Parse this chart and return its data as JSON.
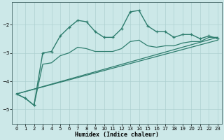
{
  "xlabel": "Humidex (Indice chaleur)",
  "ylabel": "",
  "bg_color": "#cce8e8",
  "line_color": "#2e7d6e",
  "xlim": [
    -0.5,
    23.5
  ],
  "ylim": [
    -5.5,
    -1.2
  ],
  "yticks": [
    -5,
    -4,
    -3,
    -2
  ],
  "xticks": [
    0,
    1,
    2,
    3,
    4,
    5,
    6,
    7,
    8,
    9,
    10,
    11,
    12,
    13,
    14,
    15,
    16,
    17,
    18,
    19,
    20,
    21,
    22,
    23
  ],
  "series": [
    {
      "x": [
        0,
        1,
        2,
        3,
        4,
        5,
        6,
        7,
        8,
        9,
        10,
        11,
        12,
        13,
        14,
        15,
        16,
        17,
        18,
        19,
        20,
        21,
        22,
        23
      ],
      "y": [
        -4.45,
        -4.6,
        -4.85,
        -3.0,
        -2.95,
        -2.4,
        -2.1,
        -1.85,
        -1.9,
        -2.25,
        -2.45,
        -2.45,
        -2.15,
        -1.55,
        -1.5,
        -2.05,
        -2.25,
        -2.25,
        -2.45,
        -2.35,
        -2.35,
        -2.5,
        -2.4,
        -2.5
      ],
      "marker": "+",
      "lw": 1.0
    },
    {
      "x": [
        0,
        1,
        2,
        3,
        4,
        5,
        6,
        7,
        8,
        9,
        10,
        11,
        12,
        13,
        14,
        15,
        16,
        17,
        18,
        19,
        20,
        21,
        22,
        23
      ],
      "y": [
        -4.45,
        -4.6,
        -4.85,
        -3.4,
        -3.35,
        -3.1,
        -3.0,
        -2.8,
        -2.85,
        -2.95,
        -2.95,
        -2.95,
        -2.85,
        -2.6,
        -2.55,
        -2.75,
        -2.8,
        -2.75,
        -2.75,
        -2.65,
        -2.6,
        -2.6,
        -2.45,
        -2.45
      ],
      "marker": null,
      "lw": 0.9
    },
    {
      "x": [
        0,
        23
      ],
      "y": [
        -4.45,
        -2.45
      ],
      "marker": null,
      "lw": 0.9
    },
    {
      "x": [
        0,
        23
      ],
      "y": [
        -4.45,
        -2.55
      ],
      "marker": null,
      "lw": 0.9
    }
  ]
}
